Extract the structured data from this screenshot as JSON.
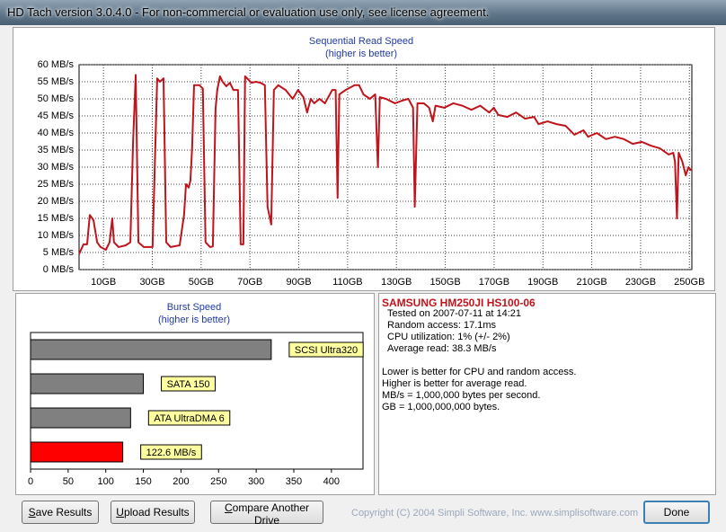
{
  "window": {
    "title": "HD Tach version 3.0.4.0  - For non-commercial or evaluation use only, see license agreement."
  },
  "chart_data": [
    {
      "type": "line",
      "title": "Sequential Read Speed",
      "subtitle": "(higher is better)",
      "color": "#c0141c",
      "grid": true,
      "x": [
        0,
        1.8,
        3.3,
        4.4,
        5.9,
        7.4,
        8.8,
        11.0,
        12.5,
        13.6,
        14.3,
        16.2,
        19.1,
        21.0,
        22.1,
        23.2,
        24.3,
        26.5,
        30.1,
        32.0,
        33.1,
        34.6,
        35.7,
        37.5,
        41.2,
        43.0,
        43.8,
        44.9,
        45.6,
        46.3,
        47.1,
        47.8,
        49.3,
        50.7,
        51.8,
        53.7,
        54.8,
        55.9,
        56.6,
        57.7,
        58.8,
        60.3,
        61.8,
        63.2,
        65.1,
        66.2,
        67.3,
        68.0,
        69.1,
        70.6,
        72.4,
        74.3,
        76.1,
        77.2,
        78.7,
        79.8,
        81.6,
        84.6,
        87.5,
        89.7,
        91.9,
        93.4,
        94.9,
        96.3,
        98.5,
        100.7,
        103.7,
        105.1,
        105.9,
        106.6,
        109.2,
        112.9,
        114.7,
        116.5,
        119.1,
        121.3,
        122.4,
        123.2,
        125.7,
        129.4,
        132.4,
        134.9,
        136.8,
        137.5,
        138.6,
        141.2,
        143.4,
        144.9,
        146.0,
        149.6,
        153.3,
        157.0,
        160.7,
        164.3,
        168.0,
        169.9,
        171.7,
        175.4,
        179.0,
        182.7,
        186.4,
        188.2,
        191.9,
        195.6,
        199.3,
        202.9,
        206.6,
        208.5,
        212.1,
        215.8,
        219.5,
        223.2,
        226.8,
        230.5,
        234.2,
        237.9,
        241.5,
        243.4,
        244.1,
        244.9,
        245.6,
        247.1,
        248.5,
        249.6,
        250.7
      ],
      "values": [
        4.5,
        7.4,
        7.4,
        16,
        14.5,
        8,
        6.6,
        5.8,
        8,
        15,
        8,
        6.6,
        7.1,
        8,
        37,
        57,
        8,
        6.6,
        6.6,
        56,
        55,
        56,
        8,
        6.6,
        7.1,
        16,
        25,
        24,
        26,
        35.5,
        54,
        54,
        54,
        53,
        8,
        6.6,
        6.8,
        47,
        52.6,
        56.6,
        55,
        53.7,
        54.7,
        52.6,
        52.6,
        7.4,
        7.4,
        56.6,
        55.8,
        54.7,
        55,
        54.7,
        54,
        18.4,
        13.2,
        52.6,
        54,
        52.6,
        50,
        52.6,
        50.5,
        46,
        50,
        48.7,
        50,
        48.7,
        52.6,
        52.6,
        21,
        51.3,
        52.6,
        54,
        54,
        51.3,
        50,
        51.3,
        30,
        50.5,
        50,
        48.7,
        49.5,
        50,
        47.4,
        18.4,
        48.7,
        48.7,
        47.4,
        43.4,
        48,
        47.4,
        48.7,
        48,
        46.8,
        48,
        46,
        47.4,
        45.3,
        44.7,
        46,
        44.2,
        44.7,
        42.6,
        43.4,
        42.6,
        42.1,
        39.5,
        40.8,
        38.9,
        40,
        38.2,
        38.9,
        38.2,
        36.8,
        37.4,
        36.3,
        35.5,
        33.7,
        34.2,
        31.6,
        15,
        34.2,
        31.6,
        27.6,
        30,
        29
      ],
      "xlim": [
        0,
        251
      ],
      "xticks": [
        {
          "value": 10,
          "label": "10GB"
        },
        {
          "value": 30,
          "label": "30GB"
        },
        {
          "value": 50,
          "label": "50GB"
        },
        {
          "value": 70,
          "label": "70GB"
        },
        {
          "value": 90,
          "label": "90GB"
        },
        {
          "value": 110,
          "label": "110GB"
        },
        {
          "value": 130,
          "label": "130GB"
        },
        {
          "value": 150,
          "label": "150GB"
        },
        {
          "value": 170,
          "label": "170GB"
        },
        {
          "value": 190,
          "label": "190GB"
        },
        {
          "value": 210,
          "label": "210GB"
        },
        {
          "value": 230,
          "label": "230GB"
        },
        {
          "value": 250,
          "label": "250GB"
        }
      ],
      "ylim": [
        0,
        60
      ],
      "yticks": [
        {
          "value": 0,
          "label": "0 MB/s"
        },
        {
          "value": 5,
          "label": "5 MB/s"
        },
        {
          "value": 10,
          "label": "10 MB/s"
        },
        {
          "value": 15,
          "label": "15 MB/s"
        },
        {
          "value": 20,
          "label": "20 MB/s"
        },
        {
          "value": 25,
          "label": "25 MB/s"
        },
        {
          "value": 30,
          "label": "30 MB/s"
        },
        {
          "value": 35,
          "label": "35 MB/s"
        },
        {
          "value": 40,
          "label": "40 MB/s"
        },
        {
          "value": 45,
          "label": "45 MB/s"
        },
        {
          "value": 50,
          "label": "50 MB/s"
        },
        {
          "value": 55,
          "label": "55 MB/s"
        },
        {
          "value": 60,
          "label": "60 MB/s"
        }
      ]
    },
    {
      "type": "bar",
      "orientation": "horizontal",
      "title": "Burst Speed",
      "subtitle": "(higher is better)",
      "categories": [
        "SCSI Ultra320",
        "SATA 150",
        "ATA UltraDMA 6",
        null
      ],
      "values": [
        320,
        150,
        133,
        122.6
      ],
      "value_labels": [
        null,
        null,
        null,
        "122.6 MB/s"
      ],
      "colors": [
        "#808080",
        "#808080",
        "#808080",
        "#ff0000"
      ],
      "xlim": [
        0,
        442
      ],
      "xticks": [
        0,
        50,
        100,
        150,
        200,
        250,
        300,
        350,
        400
      ]
    }
  ],
  "drive": {
    "name": "SAMSUNG HM250JI HS100-06",
    "details": [
      "Tested on 2007-07-11 at 14:21",
      "Random access: 17.1ms",
      "CPU utilization: 1% (+/- 2%)",
      "Average read: 38.3 MB/s"
    ],
    "notes": [
      "Lower is better for CPU and random access.",
      "Higher is better for average read.",
      "MB/s = 1,000,000 bytes per second.",
      "GB = 1,000,000,000 bytes."
    ]
  },
  "buttons": [
    "Save Results",
    "Upload Results",
    "Compare Another Drive",
    "Done"
  ],
  "copyright": "Copyright (C) 2004 Simpli Software, Inc. www.simplisoftware.com"
}
